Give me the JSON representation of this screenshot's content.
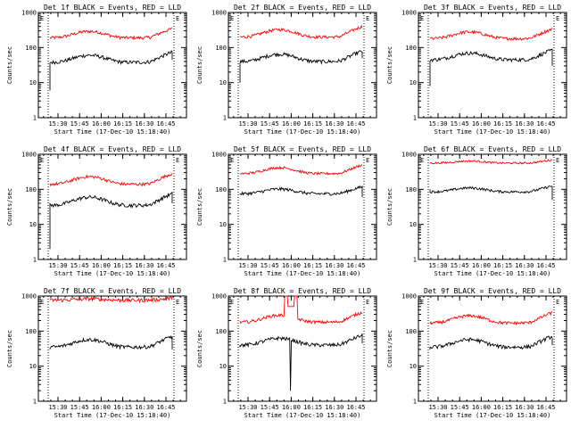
{
  "chart_data": [
    {
      "type": "line",
      "title": "Det 1f BLACK = Events, RED = LLD",
      "xlabel": "Start Time (17-Dec-10 15:18:40)",
      "ylabel": "Counts/sec",
      "y_scale": "log",
      "ylim": [
        1,
        1000
      ],
      "yticks": [
        "1",
        "10",
        "100",
        "1000"
      ],
      "xticks": [
        "15:30",
        "15:45",
        "16:00",
        "16:15",
        "16:30",
        "16:45"
      ],
      "marker": "E",
      "series": [
        {
          "color": "#ff0000",
          "shape": {
            "base": 190,
            "amp": 220,
            "noise": 0.1
          }
        },
        {
          "color": "#000000",
          "shape": {
            "base": 38,
            "amp": 50,
            "noise": 0.12,
            "start_spike": 6,
            "end_drop": 45
          }
        }
      ]
    },
    {
      "type": "line",
      "title": "Det 2f BLACK = Events, RED = LLD",
      "xlabel": "Start Time (17-Dec-10 15:18:40)",
      "ylabel": "Counts/sec",
      "y_scale": "log",
      "ylim": [
        1,
        1000
      ],
      "yticks": [
        "1",
        "10",
        "100",
        "1000"
      ],
      "xticks": [
        "15:30",
        "15:45",
        "16:00",
        "16:15",
        "16:30",
        "16:45"
      ],
      "marker": "E",
      "series": [
        {
          "color": "#ff0000",
          "shape": {
            "base": 200,
            "amp": 280,
            "noise": 0.1
          }
        },
        {
          "color": "#000000",
          "shape": {
            "base": 40,
            "amp": 55,
            "noise": 0.12,
            "start_spike": 10,
            "end_drop": 50
          }
        }
      ]
    },
    {
      "type": "line",
      "title": "Det 3f BLACK = Events, RED = LLD",
      "xlabel": "Start Time (17-Dec-10 15:18:40)",
      "ylabel": "Counts/sec",
      "y_scale": "log",
      "ylim": [
        1,
        1000
      ],
      "yticks": [
        "1",
        "10",
        "100",
        "1000"
      ],
      "xticks": [
        "15:30",
        "15:45",
        "16:00",
        "16:15",
        "16:30",
        "16:45"
      ],
      "marker": "E",
      "series": [
        {
          "color": "#ff0000",
          "shape": {
            "base": 180,
            "amp": 220,
            "noise": 0.1
          }
        },
        {
          "color": "#000000",
          "shape": {
            "base": 45,
            "amp": 55,
            "noise": 0.12,
            "start_spike": 8,
            "end_drop": 30
          }
        }
      ]
    },
    {
      "type": "line",
      "title": "Det 4f BLACK = Events, RED = LLD",
      "xlabel": "Start Time (17-Dec-10 15:18:40)",
      "ylabel": "Counts/sec",
      "y_scale": "log",
      "ylim": [
        1,
        1000
      ],
      "yticks": [
        "1",
        "10",
        "100",
        "1000"
      ],
      "xticks": [
        "15:30",
        "15:45",
        "16:00",
        "16:15",
        "16:30",
        "16:45"
      ],
      "marker": "E",
      "series": [
        {
          "color": "#ff0000",
          "shape": {
            "base": 140,
            "amp": 200,
            "noise": 0.1
          }
        },
        {
          "color": "#000000",
          "shape": {
            "base": 35,
            "amp": 55,
            "noise": 0.12,
            "start_spike": 2,
            "end_drop": 40
          }
        }
      ]
    },
    {
      "type": "line",
      "title": "Det 5f BLACK = Events, RED = LLD",
      "xlabel": "Start Time (17-Dec-10 15:18:40)",
      "ylabel": "Counts/sec",
      "y_scale": "log",
      "ylim": [
        1,
        1000
      ],
      "yticks": [
        "1",
        "10",
        "100",
        "1000"
      ],
      "xticks": [
        "15:30",
        "15:45",
        "16:00",
        "16:15",
        "16:30",
        "16:45"
      ],
      "marker": "E",
      "series": [
        {
          "color": "#ff0000",
          "shape": {
            "base": 280,
            "amp": 300,
            "noise": 0.08
          }
        },
        {
          "color": "#000000",
          "shape": {
            "base": 75,
            "amp": 60,
            "noise": 0.1,
            "start_spike": 70,
            "end_drop": 60
          }
        }
      ]
    },
    {
      "type": "line",
      "title": "Det 6f BLACK = Events, RED = LLD",
      "xlabel": "Start Time (17-Dec-10 15:18:40)",
      "ylabel": "Counts/sec",
      "y_scale": "log",
      "ylim": [
        1,
        1000
      ],
      "yticks": [
        "1",
        "10",
        "100",
        "1000"
      ],
      "xticks": [
        "15:30",
        "15:45",
        "16:00",
        "16:15",
        "16:30",
        "16:45"
      ],
      "marker": "E",
      "series": [
        {
          "color": "#ff0000",
          "shape": {
            "base": 560,
            "amp": 180,
            "noise": 0.06
          }
        },
        {
          "color": "#000000",
          "shape": {
            "base": 85,
            "amp": 55,
            "noise": 0.08,
            "start_spike": 100,
            "end_drop": 50
          }
        }
      ]
    },
    {
      "type": "line",
      "title": "Det 7f BLACK = Events, RED = LLD",
      "xlabel": "Start Time (17-Dec-10 15:18:40)",
      "ylabel": "Counts/sec",
      "y_scale": "log",
      "ylim": [
        1,
        1000
      ],
      "yticks": [
        "1",
        "10",
        "100",
        "1000"
      ],
      "xticks": [
        "15:30",
        "15:45",
        "16:00",
        "16:15",
        "16:30",
        "16:45"
      ],
      "marker": "E",
      "series": [
        {
          "color": "#ff0000",
          "shape": {
            "base": 760,
            "amp": 160,
            "noise": 0.12
          }
        },
        {
          "color": "#000000",
          "shape": {
            "base": 35,
            "amp": 50,
            "noise": 0.12,
            "start_spike": 30,
            "end_drop": 30
          }
        }
      ]
    },
    {
      "type": "line",
      "title": "Det 8f BLACK = Events, RED = LLD",
      "xlabel": "Start Time (17-Dec-10 15:18:40)",
      "ylabel": "Counts/sec",
      "y_scale": "log",
      "ylim": [
        1,
        1000
      ],
      "yticks": [
        "1",
        "10",
        "100",
        "1000"
      ],
      "xticks": [
        "15:30",
        "15:45",
        "16:00",
        "16:15",
        "16:30",
        "16:45"
      ],
      "marker": "E",
      "series": [
        {
          "color": "#ff0000",
          "shape": {
            "base": 180,
            "amp": 230,
            "noise": 0.1,
            "glitch": true
          }
        },
        {
          "color": "#000000",
          "shape": {
            "base": 40,
            "amp": 50,
            "noise": 0.12,
            "start_spike": 40,
            "end_drop": 45,
            "dip": true
          }
        }
      ]
    },
    {
      "type": "line",
      "title": "Det 9f BLACK = Events, RED = LLD",
      "xlabel": "Start Time (17-Dec-10 15:18:40)",
      "ylabel": "Counts/sec",
      "y_scale": "log",
      "ylim": [
        1,
        1000
      ],
      "yticks": [
        "1",
        "10",
        "100",
        "1000"
      ],
      "xticks": [
        "15:30",
        "15:45",
        "16:00",
        "16:15",
        "16:30",
        "16:45"
      ],
      "marker": "E",
      "series": [
        {
          "color": "#ff0000",
          "shape": {
            "base": 170,
            "amp": 230,
            "noise": 0.1
          }
        },
        {
          "color": "#000000",
          "shape": {
            "base": 35,
            "amp": 50,
            "noise": 0.12,
            "start_spike": 30,
            "end_drop": 40
          }
        }
      ]
    }
  ]
}
